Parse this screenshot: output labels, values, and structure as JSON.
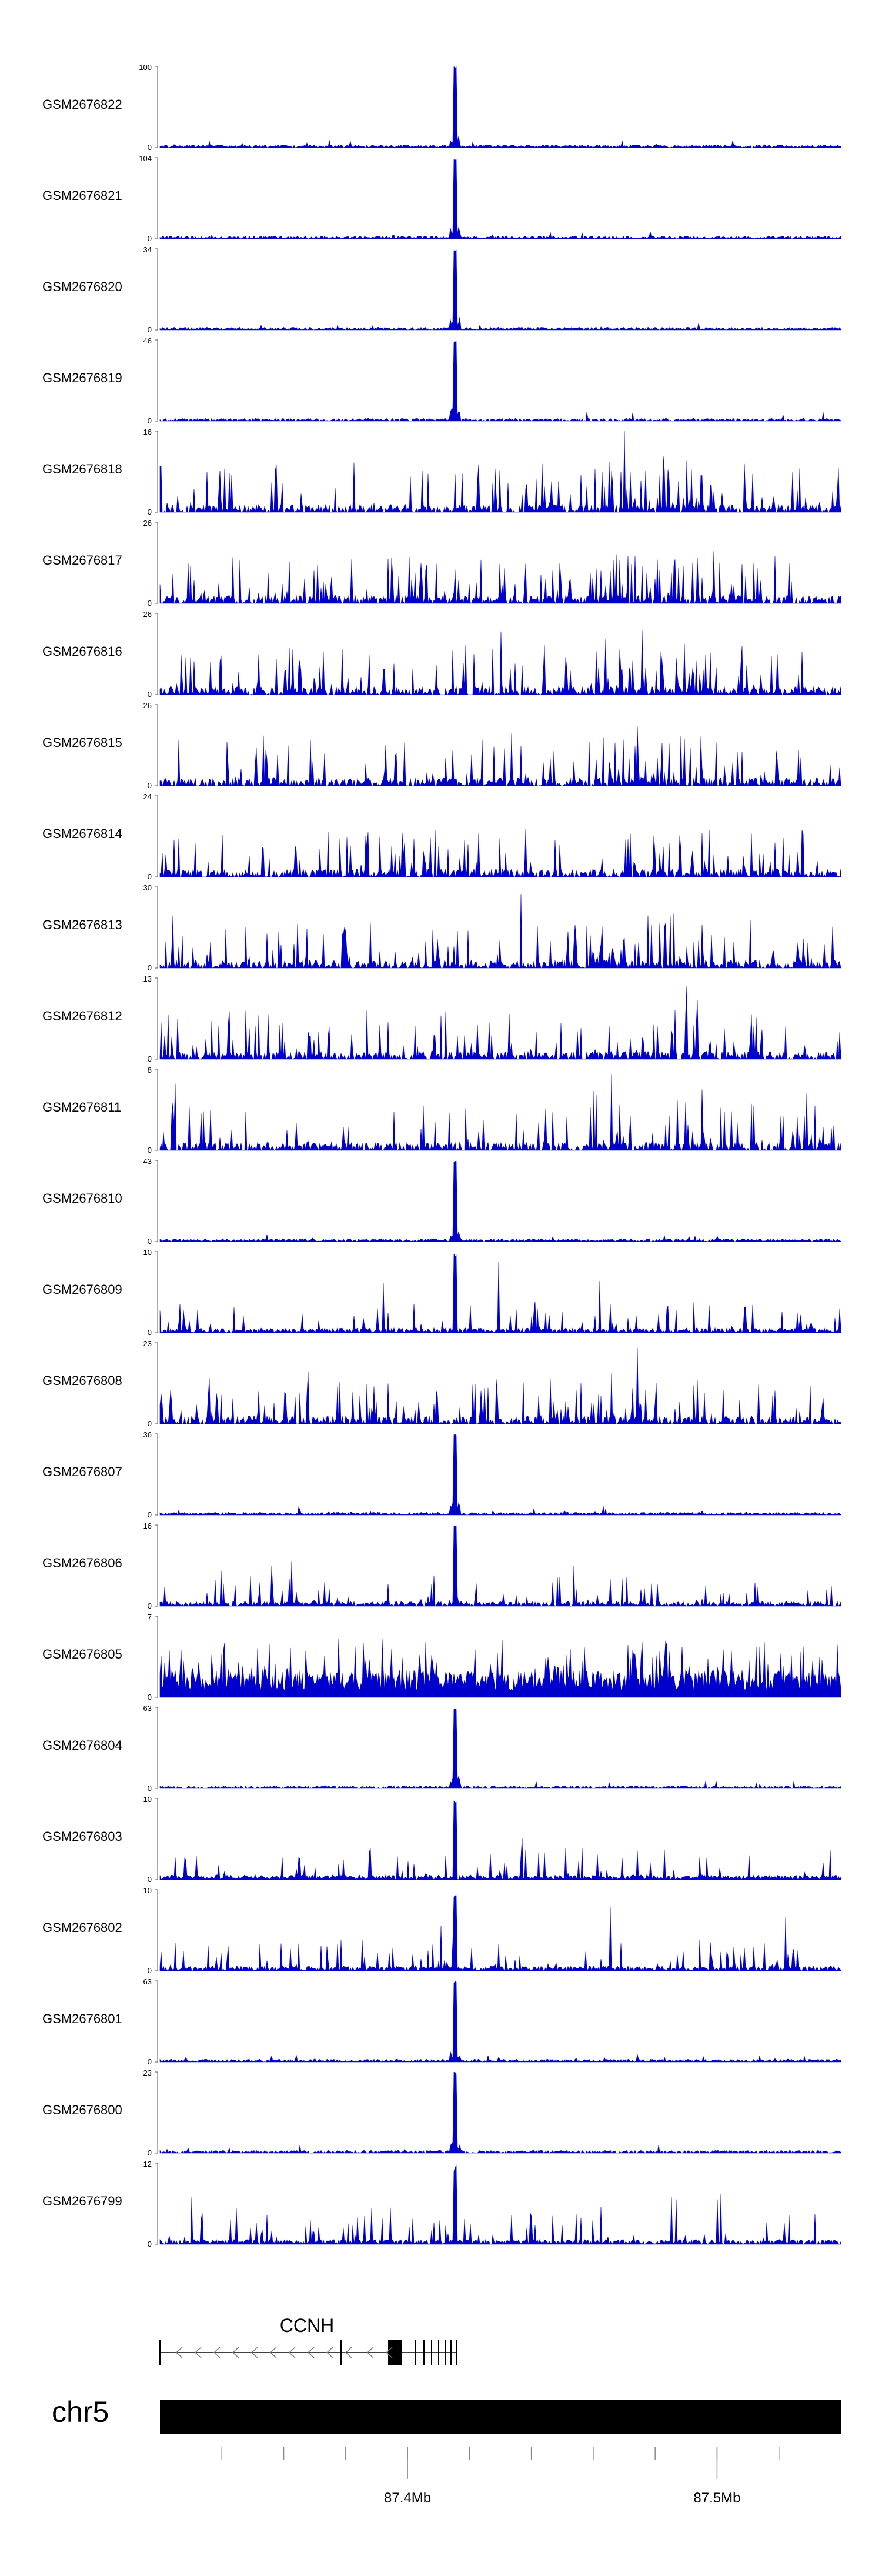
{
  "chart_data": {
    "type": "area",
    "color": "#0000cc",
    "tracks": [
      {
        "name": "GSM2676822",
        "ymax": "100",
        "ymin": "0",
        "profile": "sharp",
        "seed": 11
      },
      {
        "name": "GSM2676821",
        "ymax": "104",
        "ymin": "0",
        "profile": "sharp",
        "seed": 12
      },
      {
        "name": "GSM2676820",
        "ymax": "34",
        "ymin": "0",
        "profile": "sharp",
        "seed": 13
      },
      {
        "name": "GSM2676819",
        "ymax": "46",
        "ymin": "0",
        "profile": "sharp",
        "seed": 14
      },
      {
        "name": "GSM2676818",
        "ymax": "16",
        "ymin": "0",
        "profile": "broad",
        "seed": 15
      },
      {
        "name": "GSM2676817",
        "ymax": "26",
        "ymin": "0",
        "profile": "broad",
        "seed": 16
      },
      {
        "name": "GSM2676816",
        "ymax": "26",
        "ymin": "0",
        "profile": "broad",
        "seed": 17
      },
      {
        "name": "GSM2676815",
        "ymax": "26",
        "ymin": "0",
        "profile": "broad",
        "seed": 18
      },
      {
        "name": "GSM2676814",
        "ymax": "24",
        "ymin": "0",
        "profile": "broad",
        "seed": 19
      },
      {
        "name": "GSM2676813",
        "ymax": "30",
        "ymin": "0",
        "profile": "broad",
        "seed": 20
      },
      {
        "name": "GSM2676812",
        "ymax": "13",
        "ymin": "0",
        "profile": "broad",
        "seed": 21
      },
      {
        "name": "GSM2676811",
        "ymax": "8",
        "ymin": "0",
        "profile": "broad",
        "seed": 22
      },
      {
        "name": "GSM2676810",
        "ymax": "43",
        "ymin": "0",
        "profile": "sharp",
        "seed": 23
      },
      {
        "name": "GSM2676809",
        "ymax": "10",
        "ymin": "0",
        "profile": "mid",
        "seed": 24
      },
      {
        "name": "GSM2676808",
        "ymax": "23",
        "ymin": "0",
        "profile": "broad",
        "seed": 25
      },
      {
        "name": "GSM2676807",
        "ymax": "36",
        "ymin": "0",
        "profile": "sharp",
        "seed": 26
      },
      {
        "name": "GSM2676806",
        "ymax": "16",
        "ymin": "0",
        "profile": "mid",
        "seed": 27
      },
      {
        "name": "GSM2676805",
        "ymax": "7",
        "ymin": "0",
        "profile": "dense",
        "seed": 28
      },
      {
        "name": "GSM2676804",
        "ymax": "63",
        "ymin": "0",
        "profile": "sharp",
        "seed": 29
      },
      {
        "name": "GSM2676803",
        "ymax": "10",
        "ymin": "0",
        "profile": "mid",
        "seed": 30
      },
      {
        "name": "GSM2676802",
        "ymax": "10",
        "ymin": "0",
        "profile": "mid",
        "seed": 31
      },
      {
        "name": "GSM2676801",
        "ymax": "63",
        "ymin": "0",
        "profile": "sharp",
        "seed": 32
      },
      {
        "name": "GSM2676800",
        "ymax": "23",
        "ymin": "0",
        "profile": "sharp",
        "seed": 33
      },
      {
        "name": "GSM2676799",
        "ymax": "12",
        "ymin": "0",
        "profile": "mid",
        "seed": 34
      }
    ],
    "gene": {
      "label": "CCNH",
      "strand": "-"
    },
    "chromosome": {
      "label": "chr5"
    },
    "xaxis": {
      "range_mb": [
        87.32,
        87.54
      ],
      "tick_spacing_mb": 0.02,
      "labels": [
        {
          "value": 87.4,
          "text": "87.4Mb"
        },
        {
          "value": 87.5,
          "text": "87.5Mb"
        }
      ]
    }
  }
}
